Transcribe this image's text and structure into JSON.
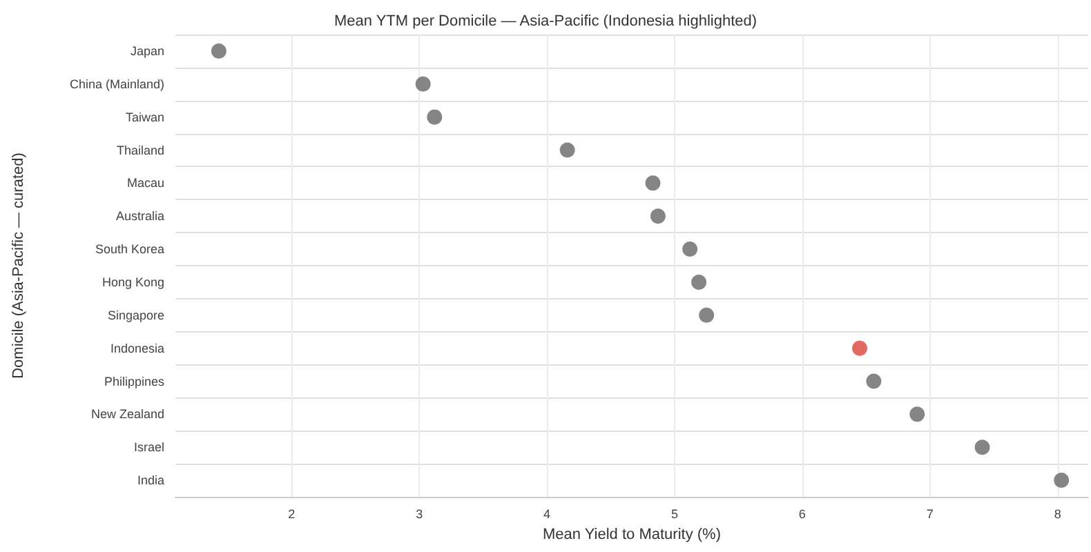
{
  "chart_data": {
    "type": "scatter",
    "title": "Mean YTM per Domicile — Asia-Pacific (Indonesia highlighted)",
    "xlabel": "Mean Yield to Maturity (%)",
    "ylabel": "Domicile (Asia-Pacific — curated)",
    "orientation": "horizontal",
    "categories": [
      "Japan",
      "China (Mainland)",
      "Taiwan",
      "Thailand",
      "Macau",
      "Australia",
      "South Korea",
      "Hong Kong",
      "Singapore",
      "Indonesia",
      "Philippines",
      "New Zealand",
      "Israel",
      "India"
    ],
    "values": [
      1.43,
      3.03,
      3.12,
      4.16,
      4.83,
      4.87,
      5.12,
      5.19,
      5.25,
      6.45,
      6.56,
      6.9,
      7.41,
      8.03
    ],
    "colors": [
      "#666666",
      "#666666",
      "#666666",
      "#666666",
      "#666666",
      "#666666",
      "#666666",
      "#666666",
      "#666666",
      "#d9453b",
      "#666666",
      "#666666",
      "#666666",
      "#666666"
    ],
    "xlim": [
      1.09,
      8.24
    ],
    "xticks": [
      2,
      3,
      4,
      5,
      6,
      7,
      8
    ],
    "grid": true,
    "marker": "circle"
  }
}
